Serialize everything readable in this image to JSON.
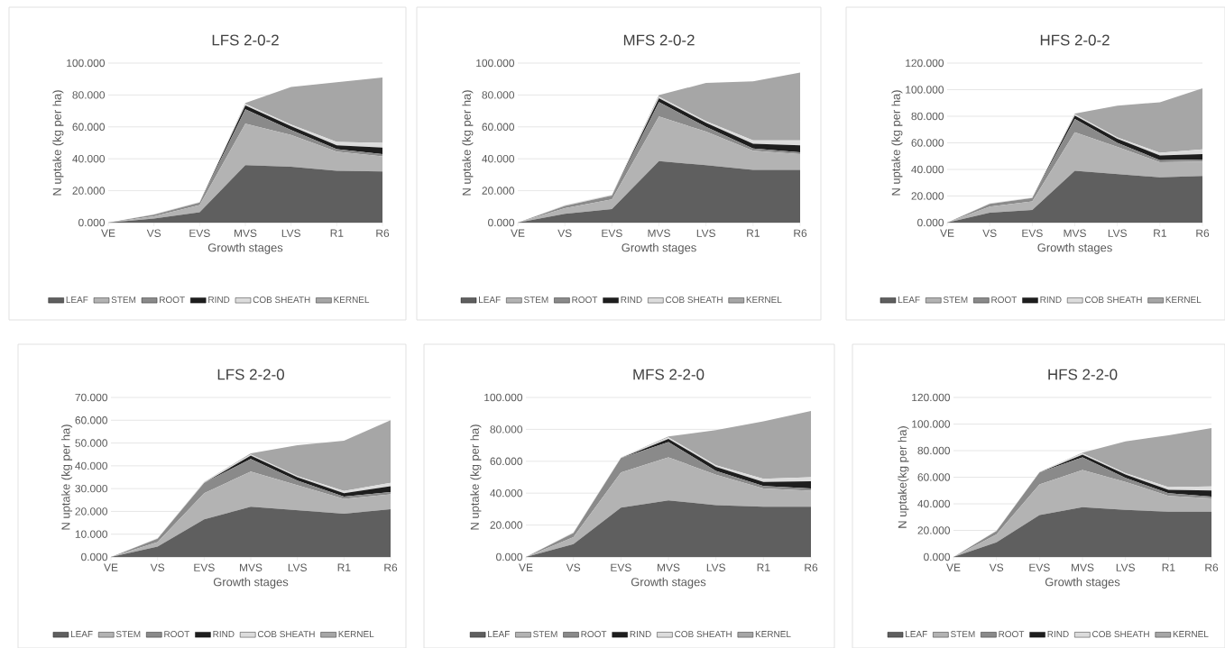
{
  "chart_data": [
    {
      "type": "area",
      "stacked": true,
      "title": "LFS 2-0-2",
      "xlabel": "Growth stages",
      "ylabel": "N uptake (kg per ha)",
      "categories": [
        "VE",
        "VS",
        "EVS",
        "MVS",
        "LVS",
        "R1",
        "R6"
      ],
      "ylim": [
        0,
        100
      ],
      "yticks": [
        {
          "value": 0,
          "label": "0.000"
        },
        {
          "value": 20,
          "label": "20.000"
        },
        {
          "value": 40,
          "label": "40.000"
        },
        {
          "value": 60,
          "label": "60.000"
        },
        {
          "value": 80,
          "label": "80.000"
        },
        {
          "value": 100,
          "label": "100.000"
        }
      ],
      "grid": "y",
      "legend": "bottom",
      "series": [
        {
          "name": "LEAF",
          "color": "#5f5f5f",
          "values": [
            0,
            2.5,
            6.5,
            36,
            35,
            32.5,
            32
          ]
        },
        {
          "name": "STEM",
          "color": "#b3b3b3",
          "values": [
            0,
            1.5,
            4.5,
            26,
            20,
            12,
            9.5
          ]
        },
        {
          "name": "ROOT",
          "color": "#8a8a8a",
          "values": [
            0,
            1,
            1.5,
            9,
            3,
            1.5,
            1.5
          ]
        },
        {
          "name": "RIND",
          "color": "#1e1e1e",
          "values": [
            0,
            0,
            0,
            2.5,
            2.5,
            2.5,
            4
          ]
        },
        {
          "name": "COB SHEATH",
          "color": "#dcdcdc",
          "values": [
            0,
            0.3,
            0.5,
            1,
            1,
            2,
            3
          ]
        },
        {
          "name": "KERNEL",
          "color": "#a6a6a6",
          "values": [
            0,
            0,
            0,
            0.5,
            23.5,
            37.5,
            41
          ]
        }
      ]
    },
    {
      "type": "area",
      "stacked": true,
      "title": "MFS 2-0-2",
      "xlabel": "Growth stages",
      "ylabel": "N uptake (kg per ha)",
      "categories": [
        "VE",
        "VS",
        "EVS",
        "MVS",
        "LVS",
        "R1",
        "R6"
      ],
      "ylim": [
        0,
        100
      ],
      "yticks": [
        {
          "value": 0,
          "label": "0.000"
        },
        {
          "value": 20,
          "label": "20.000"
        },
        {
          "value": 40,
          "label": "40.000"
        },
        {
          "value": 60,
          "label": "60.000"
        },
        {
          "value": 80,
          "label": "80.000"
        },
        {
          "value": 100,
          "label": "100.000"
        }
      ],
      "grid": "y",
      "legend": "bottom",
      "series": [
        {
          "name": "LEAF",
          "color": "#5f5f5f",
          "values": [
            0,
            5.5,
            8.5,
            38.5,
            36,
            33,
            33
          ]
        },
        {
          "name": "STEM",
          "color": "#b3b3b3",
          "values": [
            0,
            3.5,
            6,
            28,
            21,
            12,
            10
          ]
        },
        {
          "name": "ROOT",
          "color": "#8a8a8a",
          "values": [
            0,
            1.5,
            2.5,
            9,
            3,
            1.5,
            1
          ]
        },
        {
          "name": "RIND",
          "color": "#1e1e1e",
          "values": [
            0,
            0,
            0,
            2.5,
            2.5,
            3,
            4.5
          ]
        },
        {
          "name": "COB SHEATH",
          "color": "#dcdcdc",
          "values": [
            0,
            0.5,
            0.5,
            1,
            1,
            2,
            3
          ]
        },
        {
          "name": "KERNEL",
          "color": "#a6a6a6",
          "values": [
            0,
            0,
            0,
            1,
            24,
            37,
            42.5
          ]
        }
      ]
    },
    {
      "type": "area",
      "stacked": true,
      "title": "HFS 2-0-2",
      "xlabel": "Growth stages",
      "ylabel": "N uptake (kg per ha)",
      "categories": [
        "VE",
        "VS",
        "EVS",
        "MVS",
        "LVS",
        "R1",
        "R6"
      ],
      "ylim": [
        0,
        120
      ],
      "yticks": [
        {
          "value": 0,
          "label": "0.000"
        },
        {
          "value": 20,
          "label": "20.000"
        },
        {
          "value": 40,
          "label": "40.000"
        },
        {
          "value": 60,
          "label": "60.000"
        },
        {
          "value": 80,
          "label": "80.000"
        },
        {
          "value": 100,
          "label": "100.000"
        },
        {
          "value": 120,
          "label": "120.000"
        }
      ],
      "grid": "y",
      "legend": "bottom",
      "series": [
        {
          "name": "LEAF",
          "color": "#5f5f5f",
          "values": [
            0,
            7.5,
            9.5,
            39,
            36.5,
            34,
            35
          ]
        },
        {
          "name": "STEM",
          "color": "#b3b3b3",
          "values": [
            0,
            4.5,
            6.5,
            29,
            20.5,
            11.5,
            11
          ]
        },
        {
          "name": "ROOT",
          "color": "#8a8a8a",
          "values": [
            0,
            2,
            2.5,
            10,
            3,
            1.5,
            1.5
          ]
        },
        {
          "name": "RIND",
          "color": "#1e1e1e",
          "values": [
            0,
            0,
            0,
            2.5,
            3,
            3.5,
            4
          ]
        },
        {
          "name": "COB SHEATH",
          "color": "#dcdcdc",
          "values": [
            0,
            0.5,
            0.5,
            1,
            1,
            2,
            3.5
          ]
        },
        {
          "name": "KERNEL",
          "color": "#a6a6a6",
          "values": [
            0,
            0,
            0,
            0.5,
            24,
            38,
            46
          ]
        }
      ]
    },
    {
      "type": "area",
      "stacked": true,
      "title": "LFS 2-2-0",
      "xlabel": "Growth stages",
      "ylabel": "N uptake (kg per ha)",
      "categories": [
        "VE",
        "VS",
        "EVS",
        "MVS",
        "LVS",
        "R1",
        "R6"
      ],
      "ylim": [
        0,
        70
      ],
      "yticks": [
        {
          "value": 0,
          "label": "0.000"
        },
        {
          "value": 10,
          "label": "10.000"
        },
        {
          "value": 20,
          "label": "20.000"
        },
        {
          "value": 30,
          "label": "30.000"
        },
        {
          "value": 40,
          "label": "40.000"
        },
        {
          "value": 50,
          "label": "50.000"
        },
        {
          "value": 60,
          "label": "60.000"
        },
        {
          "value": 70,
          "label": "70.000"
        }
      ],
      "grid": "y",
      "legend": "bottom",
      "series": [
        {
          "name": "LEAF",
          "color": "#5f5f5f",
          "values": [
            0,
            4.5,
            16.5,
            22,
            20.5,
            19,
            21
          ]
        },
        {
          "name": "STEM",
          "color": "#b3b3b3",
          "values": [
            0,
            2,
            11.5,
            15.5,
            11,
            6.5,
            6.5
          ]
        },
        {
          "name": "ROOT",
          "color": "#8a8a8a",
          "values": [
            0,
            1.5,
            4.5,
            5.5,
            2,
            1,
            1
          ]
        },
        {
          "name": "RIND",
          "color": "#1e1e1e",
          "values": [
            0,
            0,
            0,
            1.5,
            1.5,
            1.5,
            2.5
          ]
        },
        {
          "name": "COB SHEATH",
          "color": "#dcdcdc",
          "values": [
            0,
            0.3,
            0.5,
            0.5,
            0.5,
            1,
            1.5
          ]
        },
        {
          "name": "KERNEL",
          "color": "#a6a6a6",
          "values": [
            0,
            0,
            0,
            0.5,
            13.5,
            22,
            27.5
          ]
        }
      ]
    },
    {
      "type": "area",
      "stacked": true,
      "title": "MFS 2-2-0",
      "xlabel": "Growth stages",
      "ylabel": "N uptake (kg per ha)",
      "categories": [
        "VE",
        "VS",
        "EVS",
        "MVS",
        "LVS",
        "R1",
        "R6"
      ],
      "ylim": [
        0,
        100
      ],
      "yticks": [
        {
          "value": 0,
          "label": "0.000"
        },
        {
          "value": 20,
          "label": "20.000"
        },
        {
          "value": 40,
          "label": "40.000"
        },
        {
          "value": 60,
          "label": "60.000"
        },
        {
          "value": 80,
          "label": "80.000"
        },
        {
          "value": 100,
          "label": "100.000"
        }
      ],
      "grid": "y",
      "legend": "bottom",
      "series": [
        {
          "name": "LEAF",
          "color": "#5f5f5f",
          "values": [
            0,
            8,
            31,
            35.5,
            32.5,
            31.5,
            31.5
          ]
        },
        {
          "name": "STEM",
          "color": "#b3b3b3",
          "values": [
            0,
            4.5,
            22,
            27,
            19,
            11.5,
            10
          ]
        },
        {
          "name": "ROOT",
          "color": "#8a8a8a",
          "values": [
            0,
            2.5,
            9,
            9.5,
            2.5,
            1.5,
            1.5
          ]
        },
        {
          "name": "RIND",
          "color": "#1e1e1e",
          "values": [
            0,
            0,
            0,
            2,
            2.5,
            2.5,
            4.5
          ]
        },
        {
          "name": "COB SHEATH",
          "color": "#dcdcdc",
          "values": [
            0,
            0.5,
            0.5,
            1,
            1,
            2,
            2.5
          ]
        },
        {
          "name": "KERNEL",
          "color": "#a6a6a6",
          "values": [
            0,
            0,
            0,
            0.5,
            22,
            36,
            41.5
          ]
        }
      ]
    },
    {
      "type": "area",
      "stacked": true,
      "title": "HFS 2-2-0",
      "xlabel": "Growth stages",
      "ylabel": "N uptake(kg per ha)",
      "categories": [
        "VE",
        "VS",
        "EVS",
        "MVS",
        "LVS",
        "R1",
        "R6"
      ],
      "ylim": [
        0,
        120
      ],
      "yticks": [
        {
          "value": 0,
          "label": "0.000"
        },
        {
          "value": 20,
          "label": "20.000"
        },
        {
          "value": 40,
          "label": "40.000"
        },
        {
          "value": 60,
          "label": "60.000"
        },
        {
          "value": 80,
          "label": "80.000"
        },
        {
          "value": 100,
          "label": "100.000"
        },
        {
          "value": 120,
          "label": "120.000"
        }
      ],
      "grid": "y",
      "legend": "bottom",
      "series": [
        {
          "name": "LEAF",
          "color": "#5f5f5f",
          "values": [
            0,
            11,
            31.5,
            37.5,
            35.5,
            34,
            34
          ]
        },
        {
          "name": "STEM",
          "color": "#b3b3b3",
          "values": [
            0,
            6,
            23,
            28,
            21,
            12,
            10
          ]
        },
        {
          "name": "ROOT",
          "color": "#8a8a8a",
          "values": [
            0,
            2.5,
            9,
            9.5,
            3,
            2,
            1.5
          ]
        },
        {
          "name": "RIND",
          "color": "#1e1e1e",
          "values": [
            0,
            0,
            0,
            2,
            2.5,
            2.5,
            4.5
          ]
        },
        {
          "name": "COB SHEATH",
          "color": "#dcdcdc",
          "values": [
            0,
            0.5,
            0.5,
            1,
            1,
            2,
            3
          ]
        },
        {
          "name": "KERNEL",
          "color": "#a6a6a6",
          "values": [
            0,
            0,
            0,
            0.5,
            24,
            39,
            44
          ]
        }
      ]
    }
  ]
}
